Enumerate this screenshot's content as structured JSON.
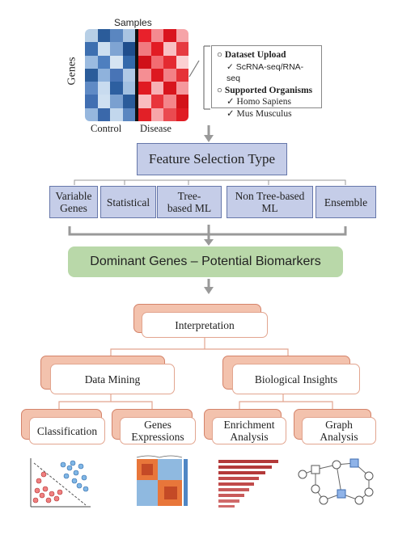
{
  "heatmap": {
    "samples_label": "Samples",
    "genes_label": "Genes",
    "control_label": "Control",
    "disease_label": "Disease",
    "control_colors": [
      "#b7cfe6",
      "#2b5c9a",
      "#5a86c0",
      "#a9c4e2",
      "#3d6fb0",
      "#cddff0",
      "#7fa4d3",
      "#1f4d8c",
      "#9bbbe0",
      "#4e7fbf",
      "#d6e4f2",
      "#3469ab",
      "#2b5c9a",
      "#8fb2dc",
      "#4874b6",
      "#b0c9e6",
      "#5f8ac5",
      "#c8dbef",
      "#2d5fa0",
      "#a2c0e1",
      "#416fb2",
      "#cfe0f1",
      "#7aa0d0",
      "#2a5b9a",
      "#96b7de",
      "#3a68aa",
      "#c2d7ed",
      "#5a86c0"
    ],
    "disease_colors": [
      "#e8212b",
      "#f48a90",
      "#d9141e",
      "#f6a4a8",
      "#f17a80",
      "#e21c24",
      "#f9c0c3",
      "#e63a40",
      "#d01019",
      "#f26c72",
      "#e42a31",
      "#fbd0d2",
      "#f58e93",
      "#dd1820",
      "#f38086",
      "#e53238",
      "#e01a22",
      "#f7b0b4",
      "#d8151d",
      "#f5989d",
      "#f9bcc0",
      "#e8343b",
      "#f4858a",
      "#d31219",
      "#e22027",
      "#f7a5a9",
      "#ea4a50",
      "#e01b23"
    ]
  },
  "info_box": {
    "dataset_upload": "Dataset Upload",
    "scrna": "ScRNA-seq/RNA-seq",
    "supported_organisms": "Supported Organisms",
    "homo_sapiens": "Homo Sapiens",
    "mus_musculus": "Mus Musculus"
  },
  "feature_selection": {
    "title": "Feature Selection Type",
    "types": [
      "Variable Genes",
      "Statistical",
      "Tree-based ML",
      "Non Tree-based ML",
      "Ensemble"
    ]
  },
  "dominant_genes": "Dominant Genes – Potential Biomarkers",
  "interpretation": "Interpretation",
  "branches": {
    "data_mining": "Data Mining",
    "biological_insights": "Biological Insights",
    "classification": "Classification",
    "genes_expressions": "Genes Expressions",
    "enrichment_analysis": "Enrichment Analysis",
    "graph_analysis": "Graph Analysis"
  },
  "colors": {
    "blue_box": "#c5cde8",
    "green_box": "#b9d8a9",
    "peach": "#f3c2ad"
  }
}
